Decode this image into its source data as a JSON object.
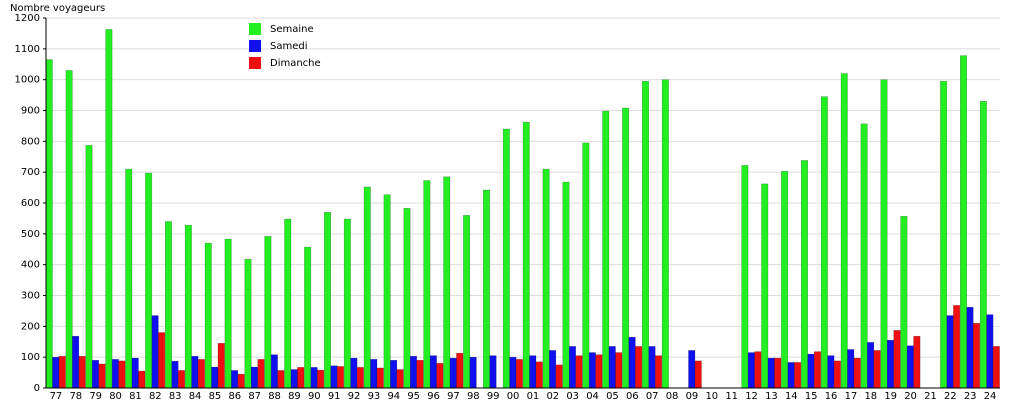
{
  "chart_data": {
    "type": "bar",
    "y_label": "Nombre voyageurs",
    "categories": [
      "77",
      "78",
      "79",
      "80",
      "81",
      "82",
      "83",
      "84",
      "85",
      "86",
      "87",
      "88",
      "89",
      "90",
      "91",
      "92",
      "93",
      "94",
      "95",
      "96",
      "97",
      "98",
      "99",
      "00",
      "01",
      "02",
      "03",
      "04",
      "05",
      "06",
      "07",
      "08",
      "09",
      "10",
      "11",
      "12",
      "13",
      "14",
      "15",
      "16",
      "17",
      "18",
      "19",
      "20",
      "21",
      "22",
      "23",
      "24"
    ],
    "series": [
      {
        "name": "Semaine",
        "color": "#22ee22",
        "values": [
          1065,
          1030,
          787,
          1163,
          710,
          697,
          540,
          528,
          470,
          483,
          418,
          492,
          548,
          457,
          570,
          548,
          652,
          627,
          583,
          673,
          685,
          560,
          642,
          840,
          862,
          710,
          668,
          795,
          898,
          908,
          995,
          1000,
          null,
          null,
          null,
          722,
          662,
          703,
          738,
          945,
          1020,
          857,
          1000,
          557,
          null,
          995,
          1078,
          930
        ]
      },
      {
        "name": "Samedi",
        "color": "#1010ee",
        "values": [
          100,
          168,
          90,
          93,
          97,
          235,
          87,
          103,
          68,
          57,
          68,
          108,
          60,
          67,
          72,
          97,
          93,
          90,
          103,
          105,
          97,
          100,
          105,
          100,
          105,
          122,
          135,
          115,
          135,
          165,
          135,
          null,
          122,
          null,
          null,
          115,
          97,
          83,
          110,
          105,
          125,
          148,
          155,
          137,
          null,
          235,
          262,
          238
        ]
      },
      {
        "name": "Dimanche",
        "color": "#ee1010",
        "values": [
          103,
          103,
          78,
          88,
          55,
          180,
          57,
          93,
          145,
          45,
          93,
          57,
          67,
          58,
          70,
          67,
          65,
          60,
          90,
          80,
          113,
          null,
          null,
          93,
          85,
          75,
          105,
          108,
          115,
          135,
          105,
          null,
          88,
          null,
          null,
          118,
          97,
          83,
          118,
          88,
          97,
          122,
          187,
          168,
          null,
          268,
          210,
          135
        ]
      }
    ],
    "ylim": [
      0,
      1200
    ],
    "yticks": [
      0,
      100,
      200,
      300,
      400,
      500,
      600,
      700,
      800,
      900,
      1000,
      1100,
      1200
    ],
    "grid": true
  }
}
